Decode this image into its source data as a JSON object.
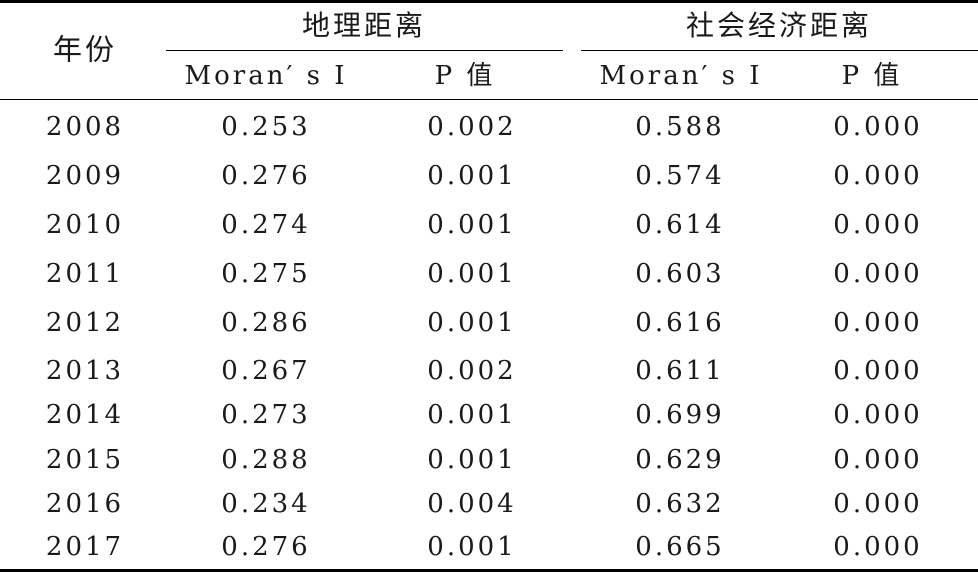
{
  "header": {
    "year": "年份",
    "group_geo": "地理距离",
    "group_econ": "社会经济距离",
    "geo_moran": "Moran′ s I",
    "geo_p": "P 值",
    "econ_moran": "Moran′ s I",
    "econ_p": "P 值"
  },
  "rows": [
    {
      "year": "2008",
      "geo_moran": "0.253",
      "geo_p": "0.002",
      "econ_moran": "0.588",
      "econ_p": "0.000"
    },
    {
      "year": "2009",
      "geo_moran": "0.276",
      "geo_p": "0.001",
      "econ_moran": "0.574",
      "econ_p": "0.000"
    },
    {
      "year": "2010",
      "geo_moran": "0.274",
      "geo_p": "0.001",
      "econ_moran": "0.614",
      "econ_p": "0.000"
    },
    {
      "year": "2011",
      "geo_moran": "0.275",
      "geo_p": "0.001",
      "econ_moran": "0.603",
      "econ_p": "0.000"
    },
    {
      "year": "2012",
      "geo_moran": "0.286",
      "geo_p": "0.001",
      "econ_moran": "0.616",
      "econ_p": "0.000"
    },
    {
      "year": "2013",
      "geo_moran": "0.267",
      "geo_p": "0.002",
      "econ_moran": "0.611",
      "econ_p": "0.000"
    },
    {
      "year": "2014",
      "geo_moran": "0.273",
      "geo_p": "0.001",
      "econ_moran": "0.699",
      "econ_p": "0.000"
    },
    {
      "year": "2015",
      "geo_moran": "0.288",
      "geo_p": "0.001",
      "econ_moran": "0.629",
      "econ_p": "0.000"
    },
    {
      "year": "2016",
      "geo_moran": "0.234",
      "geo_p": "0.004",
      "econ_moran": "0.632",
      "econ_p": "0.000"
    },
    {
      "year": "2017",
      "geo_moran": "0.276",
      "geo_p": "0.001",
      "econ_moran": "0.665",
      "econ_p": "0.000"
    }
  ]
}
